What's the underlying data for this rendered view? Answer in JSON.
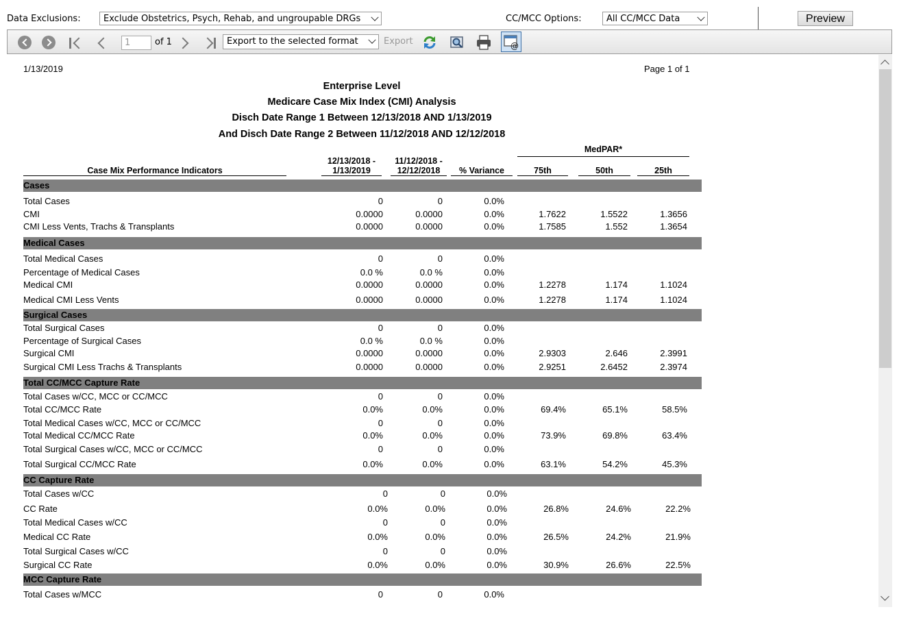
{
  "params": {
    "data_exclusions_label": "Data Exclusions:",
    "data_exclusions_value": "Exclude Obstetrics, Psych, Rehab, and ungroupable DRGs",
    "cc_mcc_label": "CC/MCC Options:",
    "cc_mcc_value": "All CC/MCC Data",
    "preview_label": "Preview"
  },
  "toolbar": {
    "page_value": "1",
    "of_text": "of 1",
    "export_format": "Export to the selected format",
    "export_label": "Export",
    "icons": [
      "back-icon",
      "forward-icon",
      "first-page-icon",
      "prev-page-icon",
      "next-page-icon",
      "last-page-icon",
      "refresh-icon",
      "print-preview-icon",
      "print-icon",
      "email-icon"
    ]
  },
  "report": {
    "date": "1/13/2019",
    "page": "Page 1 of 1",
    "titles": [
      "Enterprise Level",
      "Medicare Case Mix Index (CMI) Analysis",
      "Disch Date Range 1 Between 12/13/2018 AND 1/13/2019",
      "And Disch Date Range 2 Between 11/12/2018 AND 12/12/2018"
    ],
    "columns": {
      "indicator": "Case Mix Performance Indicators",
      "range1": "12/13/2018 -\n1/13/2019",
      "range2": "11/12/2018 -\n12/12/2018",
      "variance": "% Variance",
      "medpar": "MedPAR*",
      "p75": "75th",
      "p50": "50th",
      "p25": "25th"
    },
    "sections": [
      {
        "title": "Cases",
        "rows": [
          {
            "label": "Total Cases",
            "v": [
              "0",
              "0",
              "0.0%",
              "",
              "",
              ""
            ]
          },
          {
            "label": "CMI",
            "v": [
              "0.0000",
              "0.0000",
              "0.0%",
              "1.7622",
              "1.5522",
              "1.3656"
            ]
          },
          {
            "label": "CMI Less Vents, Trachs & Transplants",
            "v": [
              "0.0000",
              "0.0000",
              "0.0%",
              "1.7585",
              "1.552",
              "1.3654"
            ]
          }
        ]
      },
      {
        "title": "Medical Cases",
        "rows": [
          {
            "label": "Total Medical Cases",
            "v": [
              "0",
              "0",
              "0.0%",
              "",
              "",
              ""
            ]
          },
          {
            "label": "Percentage of Medical Cases",
            "v": [
              "0.0 %",
              "0.0 %",
              "0.0%",
              "",
              "",
              ""
            ]
          },
          {
            "label": "Medical CMI",
            "v": [
              "0.0000",
              "0.0000",
              "0.0%",
              "1.2278",
              "1.174",
              "1.1024"
            ]
          },
          {
            "label": "Medical CMI Less Vents",
            "v": [
              "0.0000",
              "0.0000",
              "0.0%",
              "1.2278",
              "1.174",
              "1.1024"
            ]
          }
        ]
      },
      {
        "title": "Surgical Cases",
        "rows": [
          {
            "label": "Total Surgical Cases",
            "v": [
              "0",
              "0",
              "0.0%",
              "",
              "",
              ""
            ]
          },
          {
            "label": "Percentage of Surgical Cases",
            "v": [
              "0.0 %",
              "0.0 %",
              "0.0%",
              "",
              "",
              ""
            ]
          },
          {
            "label": "Surgical CMI",
            "v": [
              "0.0000",
              "0.0000",
              "0.0%",
              "2.9303",
              "2.646",
              "2.3991"
            ]
          },
          {
            "label": "Surgical CMI Less Trachs & Transplants",
            "v": [
              "0.0000",
              "0.0000",
              "0.0%",
              "2.9251",
              "2.6452",
              "2.3974"
            ]
          }
        ]
      },
      {
        "title": "Total CC/MCC Capture Rate",
        "rows": [
          {
            "label": "Total Cases w/CC, MCC or CC/MCC",
            "v": [
              "0",
              "0",
              "0.0%",
              "",
              "",
              ""
            ]
          },
          {
            "label": "Total CC/MCC Rate",
            "v": [
              "0.0%",
              "0.0%",
              "0.0%",
              "69.4%",
              "65.1%",
              "58.5%"
            ]
          },
          {
            "label": "Total Medical Cases w/CC, MCC or CC/MCC",
            "v": [
              "0",
              "0",
              "0.0%",
              "",
              "",
              ""
            ]
          },
          {
            "label": "Total Medical CC/MCC Rate",
            "v": [
              "0.0%",
              "0.0%",
              "0.0%",
              "73.9%",
              "69.8%",
              "63.4%"
            ]
          },
          {
            "label": "Total Surgical Cases w/CC, MCC or CC/MCC",
            "v": [
              "0",
              "0",
              "0.0%",
              "",
              "",
              ""
            ]
          },
          {
            "label": "Total Surgical CC/MCC Rate",
            "v": [
              "0.0%",
              "0.0%",
              "0.0%",
              "63.1%",
              "54.2%",
              "45.3%"
            ]
          }
        ]
      },
      {
        "title": "CC Capture Rate",
        "rows": [
          {
            "label": "Total Cases w/CC",
            "v": [
              "0",
              "0",
              "0.0%",
              "",
              "",
              ""
            ]
          },
          {
            "label": "CC Rate",
            "v": [
              "0.0%",
              "0.0%",
              "0.0%",
              "26.8%",
              "24.6%",
              "22.2%"
            ]
          },
          {
            "label": "Total Medical Cases w/CC",
            "v": [
              "0",
              "0",
              "0.0%",
              "",
              "",
              ""
            ]
          },
          {
            "label": "Medical CC Rate",
            "v": [
              "0.0%",
              "0.0%",
              "0.0%",
              "26.5%",
              "24.2%",
              "21.9%"
            ]
          },
          {
            "label": "Total Surgical Cases w/CC",
            "v": [
              "0",
              "0",
              "0.0%",
              "",
              "",
              ""
            ]
          },
          {
            "label": "Surgical CC Rate",
            "v": [
              "0.0%",
              "0.0%",
              "0.0%",
              "30.9%",
              "26.6%",
              "22.5%"
            ]
          }
        ]
      },
      {
        "title": "MCC Capture Rate",
        "rows": [
          {
            "label": "Total Cases w/MCC",
            "v": [
              "0",
              "0",
              "0.0%",
              "",
              "",
              ""
            ]
          }
        ]
      }
    ]
  }
}
